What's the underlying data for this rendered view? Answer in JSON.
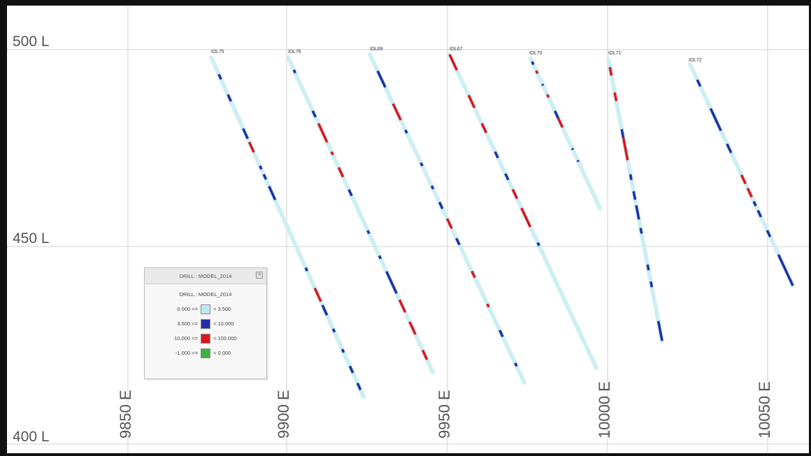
{
  "section": {
    "levels": [
      "500 L",
      "450 L",
      "400 L"
    ],
    "eastings": [
      "9850 E",
      "9900 E",
      "9950 E",
      "10000 E",
      "10050 E"
    ]
  },
  "legend": {
    "window_title": "DRILL : MODEL_2014",
    "heading": "DRILL : MODEL_2014",
    "rows": [
      {
        "lower": "0.000 <=",
        "upper": "< 3.500",
        "color": "#bfe9ee"
      },
      {
        "lower": "3.500 <=",
        "upper": "< 10.000",
        "color": "#1f2fa8"
      },
      {
        "lower": "10.000 <=",
        "upper": "< 100.000",
        "color": "#e0141c"
      },
      {
        "lower": "-1.000 <=",
        "upper": "< 0.000",
        "color": "#3cb33c"
      }
    ]
  },
  "colors": {
    "grid": "#d0d0d0",
    "hole_trace": "#cdeff3",
    "low_grade": "#1f2fa8",
    "high_grade": "#e0141c"
  },
  "drill_holes": [
    {
      "label": "IDL75",
      "intervals": [
        {
          "from": 0.05,
          "to": 0.065,
          "grade": "blue"
        },
        {
          "from": 0.11,
          "to": 0.13,
          "grade": "blue"
        },
        {
          "from": 0.21,
          "to": 0.24,
          "grade": "blue"
        },
        {
          "from": 0.25,
          "to": 0.28,
          "grade": "red"
        },
        {
          "from": 0.32,
          "to": 0.33,
          "grade": "blue"
        },
        {
          "from": 0.345,
          "to": 0.36,
          "grade": "blue"
        },
        {
          "from": 0.38,
          "to": 0.42,
          "grade": "blue"
        },
        {
          "from": 0.62,
          "to": 0.63,
          "grade": "blue"
        },
        {
          "from": 0.68,
          "to": 0.72,
          "grade": "red"
        },
        {
          "from": 0.73,
          "to": 0.76,
          "grade": "blue"
        },
        {
          "from": 0.8,
          "to": 0.81,
          "grade": "blue"
        },
        {
          "from": 0.86,
          "to": 0.87,
          "grade": "blue"
        },
        {
          "from": 0.91,
          "to": 0.93,
          "grade": "blue"
        },
        {
          "from": 0.96,
          "to": 0.98,
          "grade": "blue"
        }
      ]
    },
    {
      "label": "IDL76",
      "intervals": [
        {
          "from": 0.04,
          "to": 0.05,
          "grade": "blue"
        },
        {
          "from": 0.17,
          "to": 0.19,
          "grade": "blue"
        },
        {
          "from": 0.21,
          "to": 0.27,
          "grade": "red"
        },
        {
          "from": 0.3,
          "to": 0.31,
          "grade": "red"
        },
        {
          "from": 0.35,
          "to": 0.38,
          "grade": "red"
        },
        {
          "from": 0.42,
          "to": 0.44,
          "grade": "blue"
        },
        {
          "from": 0.55,
          "to": 0.56,
          "grade": "blue"
        },
        {
          "from": 0.63,
          "to": 0.64,
          "grade": "blue"
        },
        {
          "from": 0.68,
          "to": 0.75,
          "grade": "blue"
        },
        {
          "from": 0.77,
          "to": 0.81,
          "grade": "red"
        },
        {
          "from": 0.84,
          "to": 0.88,
          "grade": "red"
        },
        {
          "from": 0.93,
          "to": 0.96,
          "grade": "red"
        }
      ]
    },
    {
      "label": "IDL69",
      "intervals": [
        {
          "from": 0.05,
          "to": 0.1,
          "grade": "blue"
        },
        {
          "from": 0.15,
          "to": 0.2,
          "grade": "red"
        },
        {
          "from": 0.23,
          "to": 0.24,
          "grade": "blue"
        },
        {
          "from": 0.33,
          "to": 0.34,
          "grade": "blue"
        },
        {
          "from": 0.4,
          "to": 0.41,
          "grade": "blue"
        },
        {
          "from": 0.45,
          "to": 0.47,
          "grade": "blue"
        },
        {
          "from": 0.5,
          "to": 0.53,
          "grade": "red"
        },
        {
          "from": 0.56,
          "to": 0.58,
          "grade": "blue"
        },
        {
          "from": 0.66,
          "to": 0.68,
          "grade": "red"
        },
        {
          "from": 0.76,
          "to": 0.77,
          "grade": "red"
        },
        {
          "from": 0.84,
          "to": 0.86,
          "grade": "blue"
        },
        {
          "from": 0.94,
          "to": 0.95,
          "grade": "blue"
        }
      ]
    },
    {
      "label": "IDL67",
      "intervals": [
        {
          "from": 0.0,
          "to": 0.05,
          "grade": "red"
        },
        {
          "from": 0.13,
          "to": 0.17,
          "grade": "red"
        },
        {
          "from": 0.22,
          "to": 0.25,
          "grade": "red"
        },
        {
          "from": 0.31,
          "to": 0.33,
          "grade": "blue"
        },
        {
          "from": 0.38,
          "to": 0.4,
          "grade": "blue"
        },
        {
          "from": 0.43,
          "to": 0.46,
          "grade": "red"
        },
        {
          "from": 0.49,
          "to": 0.55,
          "grade": "red"
        },
        {
          "from": 0.6,
          "to": 0.61,
          "grade": "blue"
        }
      ]
    },
    {
      "label": "IDL70",
      "intervals": [
        {
          "from": 0.02,
          "to": 0.04,
          "grade": "blue"
        },
        {
          "from": 0.08,
          "to": 0.1,
          "grade": "red"
        },
        {
          "from": 0.17,
          "to": 0.18,
          "grade": "blue"
        },
        {
          "from": 0.24,
          "to": 0.26,
          "grade": "red"
        },
        {
          "from": 0.35,
          "to": 0.4,
          "grade": "blue"
        },
        {
          "from": 0.4,
          "to": 0.46,
          "grade": "red"
        },
        {
          "from": 0.6,
          "to": 0.61,
          "grade": "blue"
        },
        {
          "from": 0.68,
          "to": 0.69,
          "grade": "blue"
        }
      ]
    },
    {
      "label": "IDL71",
      "intervals": [
        {
          "from": 0.03,
          "to": 0.06,
          "grade": "red"
        },
        {
          "from": 0.12,
          "to": 0.15,
          "grade": "red"
        },
        {
          "from": 0.25,
          "to": 0.28,
          "grade": "blue"
        },
        {
          "from": 0.28,
          "to": 0.36,
          "grade": "red"
        },
        {
          "from": 0.41,
          "to": 0.43,
          "grade": "blue"
        },
        {
          "from": 0.47,
          "to": 0.5,
          "grade": "blue"
        },
        {
          "from": 0.52,
          "to": 0.57,
          "grade": "blue"
        },
        {
          "from": 0.6,
          "to": 0.62,
          "grade": "blue"
        },
        {
          "from": 0.73,
          "to": 0.75,
          "grade": "blue"
        },
        {
          "from": 0.79,
          "to": 0.81,
          "grade": "blue"
        },
        {
          "from": 0.93,
          "to": 1.0,
          "grade": "blue"
        }
      ]
    },
    {
      "label": "IDL72",
      "intervals": [
        {
          "from": 0.07,
          "to": 0.1,
          "grade": "blue"
        },
        {
          "from": 0.2,
          "to": 0.3,
          "grade": "blue"
        },
        {
          "from": 0.36,
          "to": 0.4,
          "grade": "blue"
        },
        {
          "from": 0.5,
          "to": 0.54,
          "grade": "red"
        },
        {
          "from": 0.56,
          "to": 0.6,
          "grade": "red"
        },
        {
          "from": 0.62,
          "to": 0.64,
          "grade": "blue"
        },
        {
          "from": 0.66,
          "to": 0.69,
          "grade": "blue"
        },
        {
          "from": 0.75,
          "to": 0.78,
          "grade": "blue"
        },
        {
          "from": 0.86,
          "to": 1.0,
          "grade": "blue"
        }
      ]
    }
  ]
}
